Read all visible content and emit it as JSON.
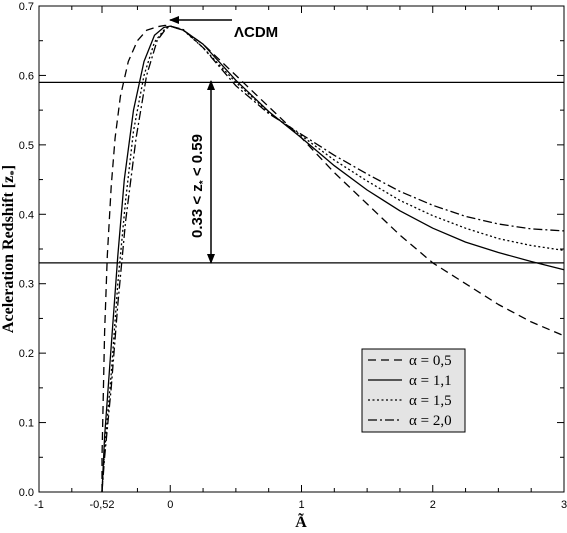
{
  "chart_data": {
    "type": "line",
    "xlabel": "Ã",
    "ylabel": "Aceleration Redshift [z",
    "ylabel_sub": "*",
    "ylabel_close": "]",
    "xlim": [
      -1,
      3
    ],
    "ylim": [
      0,
      0.7
    ],
    "x_ticks": [
      {
        "value": -1,
        "label": "-1"
      },
      {
        "value": -0.52,
        "label": "-0,52"
      },
      {
        "value": 0,
        "label": "0"
      },
      {
        "value": 1,
        "label": "1"
      },
      {
        "value": 2,
        "label": "2"
      },
      {
        "value": 3,
        "label": "3"
      }
    ],
    "x_minor_ticks": [
      -0.75,
      -0.25,
      0.25,
      0.5,
      0.75,
      1.25,
      1.5,
      1.75,
      2.25,
      2.5,
      2.75
    ],
    "y_ticks": [
      {
        "value": 0,
        "label": "0.0"
      },
      {
        "value": 0.1,
        "label": "0.1"
      },
      {
        "value": 0.2,
        "label": "0.2"
      },
      {
        "value": 0.3,
        "label": "0.3"
      },
      {
        "value": 0.4,
        "label": "0.4"
      },
      {
        "value": 0.5,
        "label": "0.5"
      },
      {
        "value": 0.6,
        "label": "0.6"
      },
      {
        "value": 0.7,
        "label": "0.7"
      }
    ],
    "y_minor_ticks": [
      0.05,
      0.15,
      0.25,
      0.35,
      0.45,
      0.55,
      0.65
    ],
    "hlines": [
      0.59,
      0.33
    ],
    "grid": false,
    "legend_position": "lower-right",
    "series": [
      {
        "name": "α = 0,5",
        "dash": "8,5",
        "x": [
          -0.52,
          -0.52,
          -0.51,
          -0.5,
          -0.48,
          -0.45,
          -0.42,
          -0.38,
          -0.32,
          -0.25,
          -0.18,
          -0.1,
          -0.04,
          0,
          0.1,
          0.25,
          0.5,
          0.75,
          1.0,
          1.25,
          1.5,
          1.75,
          2.0,
          2.25,
          2.5,
          2.75,
          3.0
        ],
        "y": [
          0.0,
          0.05,
          0.14,
          0.23,
          0.34,
          0.44,
          0.51,
          0.57,
          0.62,
          0.65,
          0.665,
          0.67,
          0.672,
          0.671,
          0.665,
          0.645,
          0.6,
          0.555,
          0.51,
          0.46,
          0.415,
          0.37,
          0.33,
          0.3,
          0.27,
          0.245,
          0.225
        ]
      },
      {
        "name": "α = 1,1",
        "dash": "",
        "x": [
          -0.52,
          -0.5,
          -0.45,
          -0.4,
          -0.35,
          -0.28,
          -0.2,
          -0.12,
          -0.05,
          0,
          0.1,
          0.25,
          0.5,
          0.75,
          1.0,
          1.25,
          1.5,
          1.75,
          2.0,
          2.25,
          2.5,
          2.75,
          3.0
        ],
        "y": [
          0.0,
          0.08,
          0.21,
          0.34,
          0.45,
          0.55,
          0.62,
          0.658,
          0.669,
          0.671,
          0.665,
          0.645,
          0.593,
          0.548,
          0.51,
          0.47,
          0.435,
          0.405,
          0.38,
          0.36,
          0.345,
          0.332,
          0.32
        ]
      },
      {
        "name": "α = 1,5",
        "dash": "2,2.5",
        "x": [
          -0.52,
          -0.5,
          -0.45,
          -0.4,
          -0.34,
          -0.28,
          -0.2,
          -0.12,
          -0.05,
          0,
          0.1,
          0.25,
          0.5,
          0.75,
          1.0,
          1.25,
          1.5,
          1.75,
          2.0,
          2.25,
          2.5,
          2.75,
          3.0
        ],
        "y": [
          0.0,
          0.06,
          0.17,
          0.3,
          0.42,
          0.52,
          0.6,
          0.648,
          0.665,
          0.671,
          0.665,
          0.64,
          0.59,
          0.547,
          0.513,
          0.478,
          0.448,
          0.42,
          0.398,
          0.38,
          0.365,
          0.355,
          0.348
        ]
      },
      {
        "name": "α = 2,0",
        "dash": "9,3,2,3",
        "x": [
          -0.52,
          -0.5,
          -0.45,
          -0.4,
          -0.34,
          -0.26,
          -0.18,
          -0.1,
          -0.03,
          0,
          0.1,
          0.25,
          0.5,
          0.75,
          1.0,
          1.25,
          1.5,
          1.75,
          2.0,
          2.25,
          2.5,
          2.75,
          3.0
        ],
        "y": [
          0.0,
          0.05,
          0.15,
          0.27,
          0.39,
          0.51,
          0.6,
          0.65,
          0.668,
          0.671,
          0.666,
          0.64,
          0.585,
          0.545,
          0.515,
          0.485,
          0.458,
          0.433,
          0.413,
          0.397,
          0.386,
          0.379,
          0.376
        ]
      }
    ],
    "annotations": {
      "lcdm_label": "ΛCDM",
      "range_label": "0.33 < z",
      "range_label_sub": "*",
      "range_label_tail": " < 0.59"
    }
  }
}
